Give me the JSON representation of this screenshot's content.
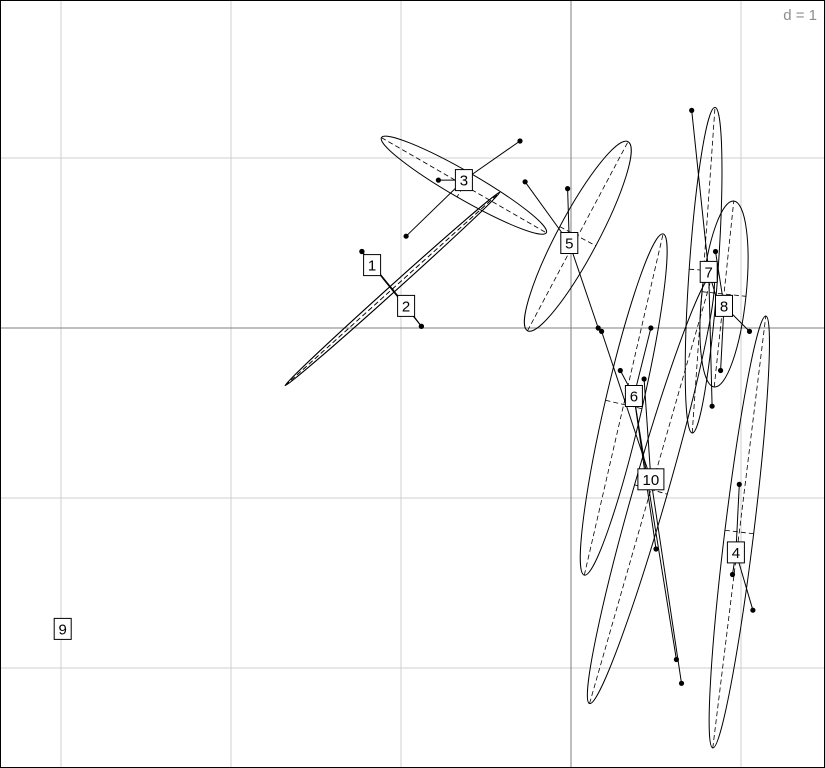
{
  "chart_data": {
    "type": "scatter",
    "scale_label": "d = 1",
    "grid": true,
    "xlim": [
      -3.0,
      1.5
    ],
    "ylim": [
      -2.5,
      1.85
    ],
    "groups": [
      {
        "label": "1",
        "center": [
          -1.17,
          0.37
        ],
        "points": [
          [
            -1.23,
            0.45
          ],
          [
            -0.88,
            0.01
          ]
        ],
        "ellipse": {
          "center": [
            -1.05,
            0.23
          ],
          "rx": 0.85,
          "ry": 0.02,
          "angle": 42
        }
      },
      {
        "label": "2",
        "center": [
          -0.97,
          0.13
        ],
        "points": [
          [
            -1.23,
            0.45
          ],
          [
            -0.88,
            0.01
          ]
        ],
        "ellipse": {
          "center": [
            -1.05,
            0.23
          ],
          "rx": 0.85,
          "ry": 0.02,
          "angle": 42
        }
      },
      {
        "label": "3",
        "center": [
          -0.63,
          0.87
        ],
        "points": [
          [
            -0.78,
            0.87
          ],
          [
            -0.97,
            0.54
          ],
          [
            -0.3,
            1.1
          ]
        ],
        "ellipse": {
          "center": [
            -0.63,
            0.84
          ],
          "rx": 0.56,
          "ry": 0.08,
          "angle": -30
        }
      },
      {
        "label": "4",
        "center": [
          0.97,
          -1.32
        ],
        "points": [
          [
            0.95,
            -1.45
          ],
          [
            1.07,
            -1.66
          ],
          [
            0.99,
            -0.92
          ]
        ],
        "ellipse": {
          "center": [
            0.99,
            -1.2
          ],
          "rx": 1.28,
          "ry": 0.085,
          "angle": 83
        }
      },
      {
        "label": "5",
        "center": [
          -0.01,
          0.5
        ],
        "points": [
          [
            -0.27,
            0.86
          ],
          [
            -0.02,
            0.82
          ],
          [
            0.16,
            0.0
          ]
        ],
        "ellipse": {
          "center": [
            0.04,
            0.54
          ],
          "rx": 0.63,
          "ry": 0.12,
          "angle": 62
        }
      },
      {
        "label": "6",
        "center": [
          0.37,
          -0.4
        ],
        "points": [
          [
            0.47,
            0.0
          ],
          [
            0.29,
            -0.25
          ],
          [
            0.62,
            -1.95
          ],
          [
            0.5,
            -1.3
          ]
        ],
        "ellipse": {
          "center": [
            0.31,
            -0.45
          ],
          "rx": 1.03,
          "ry": 0.11,
          "angle": 77
        }
      },
      {
        "label": "7",
        "center": [
          0.81,
          0.33
        ],
        "points": [
          [
            0.71,
            1.28
          ],
          [
            0.87,
            0.13
          ],
          [
            0.83,
            -0.46
          ]
        ],
        "ellipse": {
          "center": [
            0.78,
            0.34
          ],
          "rx": 0.96,
          "ry": 0.085,
          "angle": 86
        }
      },
      {
        "label": "8",
        "center": [
          0.9,
          0.13
        ],
        "points": [
          [
            1.05,
            -0.02
          ],
          [
            0.85,
            0.45
          ],
          [
            0.88,
            -0.25
          ]
        ],
        "ellipse": {
          "center": [
            0.9,
            0.2
          ],
          "rx": 0.55,
          "ry": 0.13,
          "angle": 84
        }
      },
      {
        "label": "9",
        "center": [
          -2.99,
          -1.77
        ],
        "points": [],
        "ellipse": null
      },
      {
        "label": "10",
        "center": [
          0.47,
          -0.89
        ],
        "points": [
          [
            0.18,
            -0.02
          ],
          [
            0.43,
            -0.3
          ],
          [
            0.65,
            -2.09
          ]
        ],
        "ellipse": {
          "center": [
            0.47,
            -0.95
          ],
          "rx": 1.31,
          "ry": 0.1,
          "angle": 74
        }
      }
    ]
  }
}
